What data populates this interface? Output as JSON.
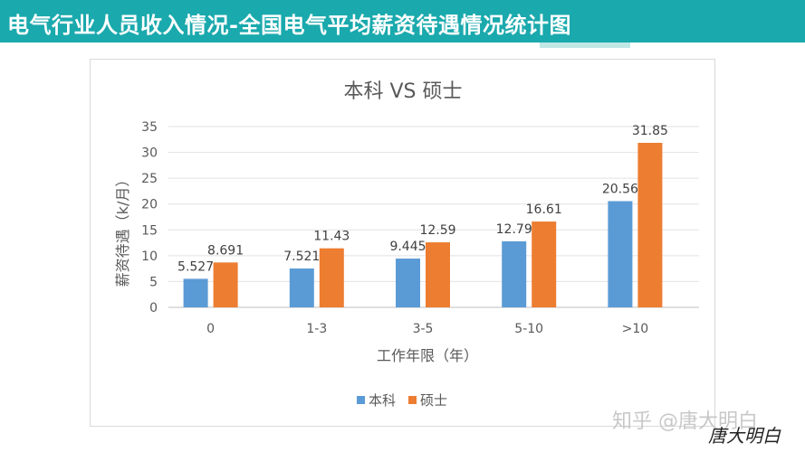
{
  "header": {
    "title": "电气行业人员收入情况-全国电气平均薪资待遇情况统计图",
    "background_color": "#1aa9ad"
  },
  "watermark": {
    "text": "知乎 @唐大明白",
    "signature": "唐大明白"
  },
  "chart_data": {
    "type": "bar",
    "title": "本科 VS 硕士",
    "xlabel": "工作年限（年）",
    "ylabel": "薪资待遇（k/月）",
    "categories": [
      "0",
      "1-3",
      "3-5",
      "5-10",
      ">10"
    ],
    "ylim": [
      0,
      35
    ],
    "yticks": [
      0,
      5,
      10,
      15,
      20,
      25,
      30,
      35
    ],
    "grid": true,
    "legend_position": "bottom",
    "series": [
      {
        "name": "本科",
        "values": [
          5.527,
          7.521,
          9.445,
          12.79,
          20.56
        ],
        "labels": [
          "5.527",
          "7.521",
          "9.445",
          "12.79",
          "20.56"
        ],
        "color": "#5b9bd5"
      },
      {
        "name": "硕士",
        "values": [
          8.691,
          11.43,
          12.59,
          16.61,
          31.85
        ],
        "labels": [
          "8.691",
          "11.43",
          "12.59",
          "16.61",
          "31.85"
        ],
        "color": "#ed7d31"
      }
    ]
  }
}
